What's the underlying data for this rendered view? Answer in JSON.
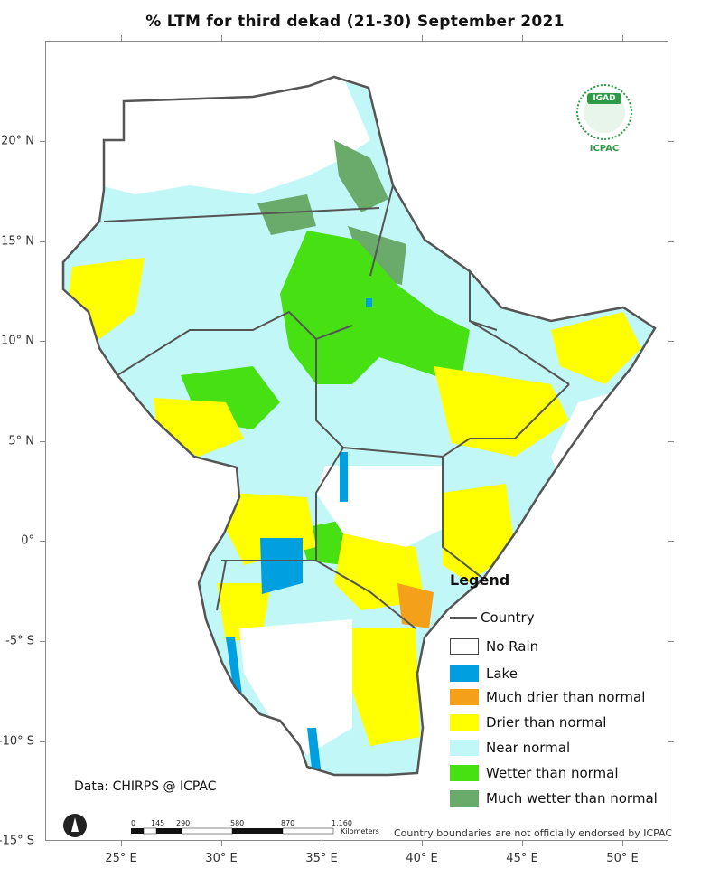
{
  "title": "% LTM  for   third dekad (21-30) September  2021",
  "latitude_labels": [
    "20° N",
    "15° N",
    "10° N",
    "5° N",
    "0°",
    "-5° S",
    "-10° S",
    "-15° S"
  ],
  "longitude_labels": [
    "25° E",
    "30° E",
    "35° E",
    "40° E",
    "45° E",
    "50° E"
  ],
  "legend": {
    "title": "Legend",
    "country": "Country",
    "items": [
      {
        "label": "No Rain",
        "color": "#ffffff"
      },
      {
        "label": "Lake",
        "color": "#009fe0"
      },
      {
        "label": "Much drier than normal",
        "color": "#f5a01a"
      },
      {
        "label": "Drier than normal",
        "color": "#ffff00"
      },
      {
        "label": "Near normal",
        "color": "#c2f7f7"
      },
      {
        "label": "Wetter than normal",
        "color": "#46e013"
      },
      {
        "label": "Much wetter than normal",
        "color": "#6aaa6a"
      }
    ]
  },
  "credit": "Data: CHIRPS @ ICPAC",
  "disclaimer": "Country boundaries are not officially endorsed by ICPAC",
  "scale": {
    "ticks": [
      "0",
      "145",
      "290",
      "580",
      "870",
      "1,160"
    ],
    "unit": "Kilometers"
  },
  "logo": {
    "badge": "IGAD",
    "name": "ICPAC"
  },
  "colors": {
    "border": "#555555",
    "frame": "#8a8a8a"
  }
}
